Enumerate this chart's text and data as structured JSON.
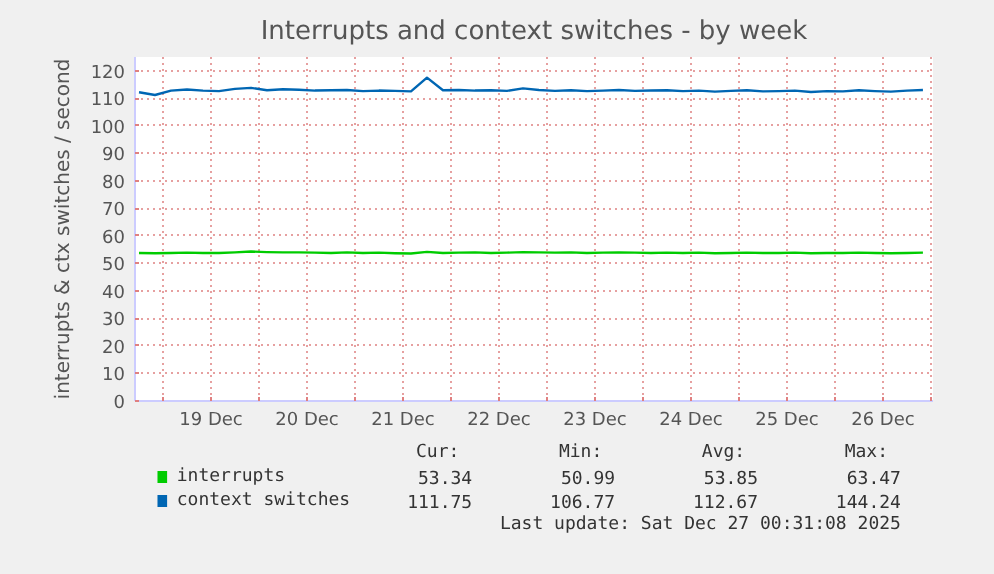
{
  "chart_data": {
    "type": "line",
    "title": "Interrupts and context switches - by week",
    "ylabel": "interrupts & ctx switches / second",
    "x": [
      "2025-12-18T18:00",
      "2025-12-18T22:00",
      "2025-12-19T02:00",
      "2025-12-19T06:00",
      "2025-12-19T10:00",
      "2025-12-19T14:00",
      "2025-12-19T18:00",
      "2025-12-19T22:00",
      "2025-12-20T02:00",
      "2025-12-20T06:00",
      "2025-12-20T10:00",
      "2025-12-20T14:00",
      "2025-12-20T18:00",
      "2025-12-20T22:00",
      "2025-12-21T02:00",
      "2025-12-21T06:00",
      "2025-12-21T10:00",
      "2025-12-21T14:00",
      "2025-12-21T18:00",
      "2025-12-21T22:00",
      "2025-12-22T02:00",
      "2025-12-22T06:00",
      "2025-12-22T10:00",
      "2025-12-22T14:00",
      "2025-12-22T18:00",
      "2025-12-22T22:00",
      "2025-12-23T02:00",
      "2025-12-23T06:00",
      "2025-12-23T10:00",
      "2025-12-23T14:00",
      "2025-12-23T18:00",
      "2025-12-23T22:00",
      "2025-12-24T02:00",
      "2025-12-24T06:00",
      "2025-12-24T10:00",
      "2025-12-24T14:00",
      "2025-12-24T18:00",
      "2025-12-24T22:00",
      "2025-12-25T02:00",
      "2025-12-25T06:00",
      "2025-12-25T10:00",
      "2025-12-25T14:00",
      "2025-12-25T18:00",
      "2025-12-25T22:00",
      "2025-12-26T02:00",
      "2025-12-26T06:00",
      "2025-12-26T10:00",
      "2025-12-26T14:00",
      "2025-12-26T18:00",
      "2025-12-26T22:00"
    ],
    "series": [
      {
        "name": "interrupts",
        "color": "#00cc00",
        "values": [
          53.8,
          53.7,
          53.8,
          53.9,
          53.8,
          53.8,
          54.0,
          54.3,
          54.1,
          54.0,
          54.0,
          53.9,
          53.8,
          54.0,
          53.8,
          53.9,
          53.7,
          53.6,
          54.2,
          53.8,
          53.9,
          54.0,
          53.8,
          53.9,
          54.1,
          54.0,
          53.9,
          54.0,
          53.8,
          53.9,
          54.0,
          53.9,
          53.8,
          53.9,
          53.8,
          53.9,
          53.7,
          53.8,
          53.9,
          53.8,
          53.8,
          53.9,
          53.7,
          53.8,
          53.8,
          53.9,
          53.8,
          53.7,
          53.8,
          53.9
        ]
      },
      {
        "name": "context switches",
        "color": "#0066b3",
        "values": [
          112.2,
          111.2,
          112.8,
          113.2,
          112.8,
          112.6,
          113.4,
          113.8,
          112.9,
          113.3,
          113.1,
          112.8,
          112.9,
          113.0,
          112.6,
          112.8,
          112.7,
          112.5,
          117.5,
          112.9,
          113.0,
          112.8,
          112.9,
          112.7,
          113.6,
          113.0,
          112.7,
          112.9,
          112.6,
          112.8,
          113.0,
          112.7,
          112.8,
          112.9,
          112.6,
          112.8,
          112.4,
          112.7,
          112.9,
          112.5,
          112.6,
          112.8,
          112.3,
          112.6,
          112.5,
          112.9,
          112.6,
          112.4,
          112.8,
          113.0
        ]
      }
    ],
    "xlim": [
      "2025-12-18T17:00",
      "2025-12-27T00:31"
    ],
    "xticks": [
      {
        "value": "2025-12-19T00:00",
        "label": null
      },
      {
        "value": "2025-12-19T12:00",
        "label": "19 Dec"
      },
      {
        "value": "2025-12-20T00:00",
        "label": null
      },
      {
        "value": "2025-12-20T12:00",
        "label": "20 Dec"
      },
      {
        "value": "2025-12-21T00:00",
        "label": null
      },
      {
        "value": "2025-12-21T12:00",
        "label": "21 Dec"
      },
      {
        "value": "2025-12-22T00:00",
        "label": null
      },
      {
        "value": "2025-12-22T12:00",
        "label": "22 Dec"
      },
      {
        "value": "2025-12-23T00:00",
        "label": null
      },
      {
        "value": "2025-12-23T12:00",
        "label": "23 Dec"
      },
      {
        "value": "2025-12-24T00:00",
        "label": null
      },
      {
        "value": "2025-12-24T12:00",
        "label": "24 Dec"
      },
      {
        "value": "2025-12-25T00:00",
        "label": null
      },
      {
        "value": "2025-12-25T12:00",
        "label": "25 Dec"
      },
      {
        "value": "2025-12-26T00:00",
        "label": null
      },
      {
        "value": "2025-12-26T12:00",
        "label": "26 Dec"
      },
      {
        "value": "2025-12-27T00:00",
        "label": null
      }
    ],
    "ylim": [
      0,
      125
    ],
    "yticks": [
      0,
      10,
      20,
      30,
      40,
      50,
      60,
      70,
      80,
      90,
      100,
      110,
      120
    ],
    "grid": true,
    "legend": "bottom",
    "line_style": "solid",
    "annotations": [
      "Cur:",
      "Min:",
      "Avg:",
      "Max:",
      "53.34",
      "50.99",
      "53.85",
      "63.47",
      "111.75",
      "106.77",
      "112.67",
      "144.24",
      "Last update: Sat Dec 27 00:31:08 2025"
    ]
  }
}
